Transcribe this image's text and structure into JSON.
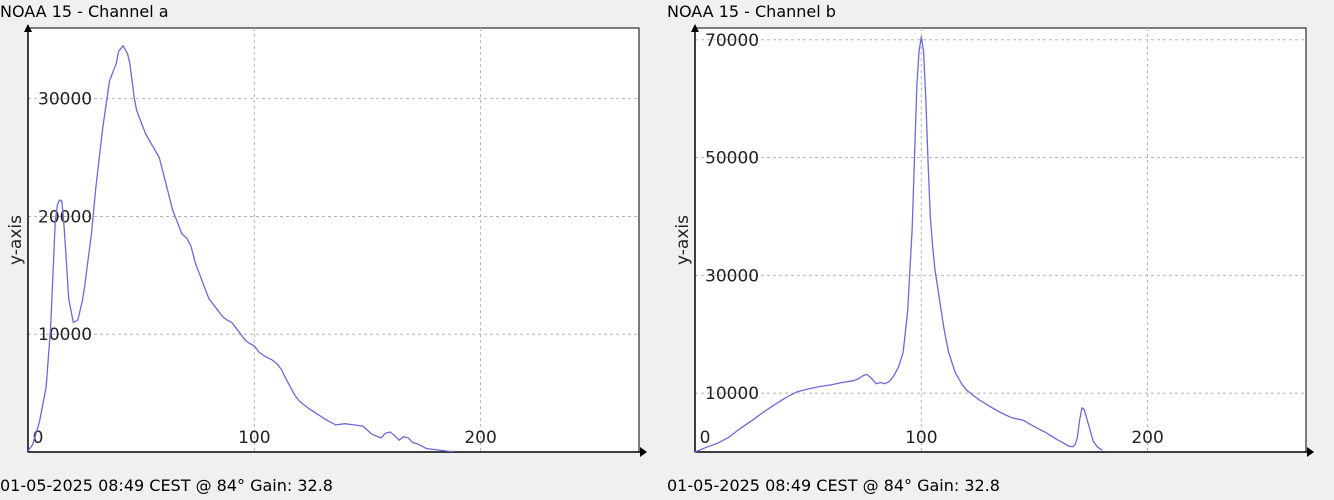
{
  "chart_data": [
    {
      "type": "line",
      "title": "NOAA 15 - Channel a",
      "footer": "01-05-2025 08:49 CEST @ 84° Gain: 32.8",
      "xlabel": "",
      "ylabel": "y-axis",
      "xlim": [
        0,
        270
      ],
      "ylim": [
        0,
        36000
      ],
      "x_ticks": [
        0,
        100,
        200
      ],
      "y_ticks": [
        10000,
        20000,
        30000
      ],
      "grid": true,
      "line_color": "#6a6ad8",
      "series": [
        {
          "x": [
            0,
            2,
            5,
            8,
            10,
            11,
            12,
            13,
            14,
            15,
            16,
            17,
            18,
            20,
            22,
            24,
            25,
            26,
            28,
            30,
            33,
            36,
            39,
            40,
            42,
            44,
            45,
            46,
            47,
            48,
            50,
            52,
            55,
            58,
            60,
            62,
            64,
            66,
            68,
            70,
            72,
            74,
            76,
            78,
            80,
            82,
            84,
            86,
            88,
            90,
            92,
            94,
            96,
            98,
            100,
            102,
            104,
            106,
            108,
            110,
            112,
            114,
            116,
            118,
            120,
            124,
            128,
            132,
            136,
            140,
            144,
            148,
            152,
            156,
            158,
            160,
            162,
            164,
            166,
            168,
            170,
            172,
            174,
            176,
            180,
            184,
            186,
            188
          ],
          "y": [
            100,
            600,
            2500,
            5500,
            10500,
            15000,
            19500,
            21000,
            21400,
            21300,
            19000,
            16000,
            13000,
            11000,
            11200,
            12800,
            14000,
            15500,
            18500,
            22500,
            27500,
            31500,
            33000,
            34000,
            34500,
            33800,
            33000,
            31500,
            30000,
            29000,
            28000,
            27000,
            26000,
            25000,
            23500,
            22000,
            20500,
            19500,
            18500,
            18200,
            17500,
            16000,
            15000,
            14000,
            13000,
            12500,
            12000,
            11500,
            11200,
            11000,
            10500,
            10000,
            9500,
            9200,
            9000,
            8500,
            8200,
            8000,
            7800,
            7500,
            7000,
            6200,
            5500,
            4800,
            4300,
            3700,
            3200,
            2700,
            2300,
            2400,
            2300,
            2200,
            1500,
            1200,
            1600,
            1700,
            1400,
            1000,
            1300,
            1200,
            800,
            700,
            500,
            300,
            200,
            100,
            50,
            50
          ]
        }
      ]
    },
    {
      "type": "line",
      "title": "NOAA 15 - Channel b",
      "footer": "01-05-2025 08:49 CEST @ 84° Gain: 32.8",
      "xlabel": "",
      "ylabel": "y-axis",
      "xlim": [
        0,
        270
      ],
      "ylim": [
        0,
        72000
      ],
      "x_ticks": [
        0,
        100,
        200
      ],
      "y_ticks": [
        10000,
        30000,
        50000,
        70000
      ],
      "grid": true,
      "line_color": "#6a6ad8",
      "series": [
        {
          "x": [
            0,
            5,
            10,
            15,
            20,
            25,
            30,
            35,
            40,
            45,
            50,
            55,
            60,
            65,
            70,
            72,
            74,
            76,
            78,
            80,
            82,
            84,
            86,
            88,
            90,
            92,
            94,
            96,
            97,
            98,
            99,
            100,
            101,
            102,
            103,
            104,
            105,
            106,
            108,
            110,
            112,
            115,
            118,
            120,
            125,
            130,
            135,
            140,
            145,
            150,
            155,
            160,
            163,
            165,
            167,
            168,
            169,
            170,
            171,
            172,
            174,
            176,
            178,
            180
          ],
          "y": [
            0,
            800,
            1500,
            2500,
            4000,
            5300,
            6700,
            8000,
            9200,
            10200,
            10700,
            11100,
            11400,
            11800,
            12100,
            12400,
            12900,
            13200,
            12500,
            11600,
            11800,
            11600,
            12000,
            13000,
            14500,
            17000,
            24000,
            38000,
            50000,
            62000,
            68000,
            70500,
            68000,
            60000,
            49000,
            40000,
            35000,
            31000,
            26000,
            21000,
            17000,
            13500,
            11500,
            10500,
            9000,
            7800,
            6700,
            5800,
            5400,
            4300,
            3300,
            2100,
            1500,
            1000,
            900,
            1300,
            2500,
            5500,
            7500,
            7200,
            4500,
            1800,
            800,
            300
          ]
        }
      ]
    }
  ]
}
